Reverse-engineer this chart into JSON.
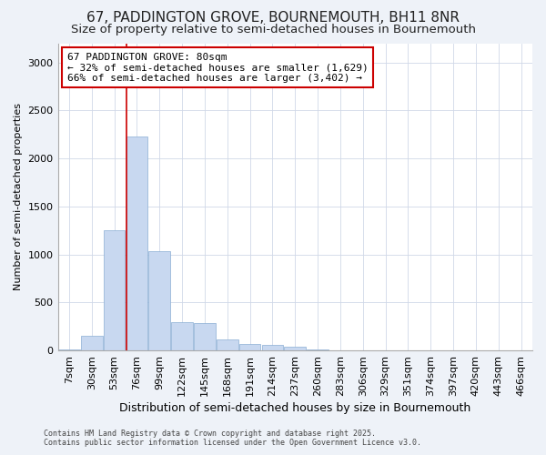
{
  "title": "67, PADDINGTON GROVE, BOURNEMOUTH, BH11 8NR",
  "subtitle": "Size of property relative to semi-detached houses in Bournemouth",
  "xlabel": "Distribution of semi-detached houses by size in Bournemouth",
  "ylabel": "Number of semi-detached properties",
  "categories": [
    "7sqm",
    "30sqm",
    "53sqm",
    "76sqm",
    "99sqm",
    "122sqm",
    "145sqm",
    "168sqm",
    "191sqm",
    "214sqm",
    "237sqm",
    "260sqm",
    "283sqm",
    "306sqm",
    "329sqm",
    "351sqm",
    "374sqm",
    "397sqm",
    "420sqm",
    "443sqm",
    "466sqm"
  ],
  "values": [
    10,
    150,
    1250,
    2230,
    1030,
    300,
    285,
    115,
    65,
    55,
    40,
    15,
    0,
    0,
    0,
    0,
    0,
    0,
    0,
    0,
    0
  ],
  "bar_color": "#c8d8f0",
  "bar_edge_color": "#8aaed4",
  "vline_index": 3,
  "annotation_title": "67 PADDINGTON GROVE: 80sqm",
  "annotation_line1": "← 32% of semi-detached houses are smaller (1,629)",
  "annotation_line2": "66% of semi-detached houses are larger (3,402) →",
  "footer1": "Contains HM Land Registry data © Crown copyright and database right 2025.",
  "footer2": "Contains public sector information licensed under the Open Government Licence v3.0.",
  "ylim": [
    0,
    3200
  ],
  "yticks": [
    0,
    500,
    1000,
    1500,
    2000,
    2500,
    3000
  ],
  "bg_color": "#eef2f8",
  "plot_bg_color": "#ffffff",
  "grid_color": "#d0d8e8",
  "title_fontsize": 11,
  "subtitle_fontsize": 9.5,
  "xlabel_fontsize": 9,
  "ylabel_fontsize": 8,
  "tick_fontsize": 8,
  "annotation_fontsize": 8,
  "footer_fontsize": 6,
  "annotation_box_color": "#ffffff",
  "annotation_box_edge": "#cc0000",
  "vline_color": "#cc0000"
}
